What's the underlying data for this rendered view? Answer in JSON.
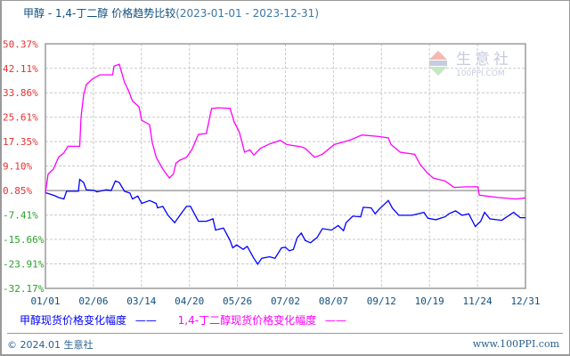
{
  "title": {
    "main": "甲醇 - 1,4-丁二醇 价格趋势比较",
    "range": "(2023-01-01 - 2023-12-31)"
  },
  "watermark": {
    "name": "生意社",
    "url": "100PPI.COM",
    "logo_text": "PPI"
  },
  "footer": {
    "copyright": "© 2024.01 生意社",
    "site": "www.100PPI.com"
  },
  "colors": {
    "methanol": "#0000ff",
    "butanediol": "#ff00ff",
    "positive_tick": "#e83030",
    "negative_tick": "#2aa02a",
    "text": "#0f4f7f",
    "grid": "#c8c8c8"
  },
  "chart_data": {
    "type": "line",
    "title": "甲醇 - 1,4-丁二醇 价格趋势比较(2023-01-01 - 2023-12-31)",
    "xlim": [
      "2023-01-01",
      "2023-12-31"
    ],
    "ylim": [
      -32.17,
      50.37
    ],
    "yticks": [
      "50.37%",
      "42.11%",
      "33.86%",
      "25.61%",
      "17.35%",
      "9.10%",
      "0.85%",
      "-7.41%",
      "-15.66%",
      "-23.91%",
      "-32.17%"
    ],
    "xticks": [
      "01/01",
      "02/06",
      "03/14",
      "04/20",
      "05/26",
      "07/02",
      "08/07",
      "09/12",
      "10/19",
      "11/24",
      "12/31"
    ],
    "grid": true,
    "legend_placement": "bottom",
    "series": [
      {
        "name": "甲醇现货价格变化幅度",
        "legend_line": "——",
        "color": "#0000ff",
        "points": [
          [
            "2023-01-01",
            0
          ],
          [
            "2023-01-02",
            0
          ],
          [
            "2023-01-08",
            -0.9
          ],
          [
            "2023-01-11",
            -1.5
          ],
          [
            "2023-01-15",
            -2.0
          ],
          [
            "2023-01-17",
            0.6
          ],
          [
            "2023-01-26",
            0.6
          ],
          [
            "2023-01-27",
            4.6
          ],
          [
            "2023-01-30",
            3.6
          ],
          [
            "2023-02-01",
            1.1
          ],
          [
            "2023-02-07",
            0.9
          ],
          [
            "2023-02-09",
            0.4
          ],
          [
            "2023-02-16",
            1.1
          ],
          [
            "2023-02-20",
            0.9
          ],
          [
            "2023-02-23",
            4.1
          ],
          [
            "2023-02-26",
            3.6
          ],
          [
            "2023-03-02",
            0.6
          ],
          [
            "2023-03-06",
            0.0
          ],
          [
            "2023-03-08",
            -2.0
          ],
          [
            "2023-03-12",
            -1.0
          ],
          [
            "2023-03-15",
            -3.5
          ],
          [
            "2023-03-21",
            -2.5
          ],
          [
            "2023-03-26",
            -3.5
          ],
          [
            "2023-03-27",
            -5.0
          ],
          [
            "2023-03-31",
            -4.5
          ],
          [
            "2023-04-04",
            -7.5
          ],
          [
            "2023-04-09",
            -10.0
          ],
          [
            "2023-04-13",
            -7.5
          ],
          [
            "2023-04-18",
            -4.5
          ],
          [
            "2023-04-21",
            -4.5
          ],
          [
            "2023-04-27",
            -9.5
          ],
          [
            "2023-05-03",
            -9.5
          ],
          [
            "2023-05-08",
            -8.7
          ],
          [
            "2023-05-10",
            -12.5
          ],
          [
            "2023-05-16",
            -11.8
          ],
          [
            "2023-05-21",
            -16.0
          ],
          [
            "2023-05-23",
            -18.5
          ],
          [
            "2023-05-26",
            -17.5
          ],
          [
            "2023-05-31",
            -19.0
          ],
          [
            "2023-06-03",
            -18.0
          ],
          [
            "2023-06-08",
            -22.0
          ],
          [
            "2023-06-11",
            -24.0
          ],
          [
            "2023-06-14",
            -22.0
          ],
          [
            "2023-06-20",
            -21.5
          ],
          [
            "2023-06-24",
            -22.0
          ],
          [
            "2023-06-29",
            -18.5
          ],
          [
            "2023-07-02",
            -18.3
          ],
          [
            "2023-07-05",
            -19.5
          ],
          [
            "2023-07-08",
            -19.0
          ],
          [
            "2023-07-11",
            -15.0
          ],
          [
            "2023-07-14",
            -13.5
          ],
          [
            "2023-07-17",
            -16.0
          ],
          [
            "2023-07-21",
            -16.8
          ],
          [
            "2023-07-26",
            -15.0
          ],
          [
            "2023-07-30",
            -12.0
          ],
          [
            "2023-08-06",
            -12.5
          ],
          [
            "2023-08-11",
            -11.0
          ],
          [
            "2023-08-15",
            -12.7
          ],
          [
            "2023-08-17",
            -10.0
          ],
          [
            "2023-08-22",
            -7.8
          ],
          [
            "2023-08-28",
            -8.0
          ],
          [
            "2023-08-30",
            -4.8
          ],
          [
            "2023-09-05",
            -5.0
          ],
          [
            "2023-09-08",
            -7.0
          ],
          [
            "2023-09-11",
            -5.5
          ],
          [
            "2023-09-18",
            -2.5
          ],
          [
            "2023-09-21",
            -5.0
          ],
          [
            "2023-09-26",
            -7.5
          ],
          [
            "2023-10-06",
            -7.5
          ],
          [
            "2023-10-15",
            -6.5
          ],
          [
            "2023-10-18",
            -8.5
          ],
          [
            "2023-10-24",
            -9.0
          ],
          [
            "2023-10-31",
            -8.0
          ],
          [
            "2023-11-03",
            -7.0
          ],
          [
            "2023-11-08",
            -6.0
          ],
          [
            "2023-11-13",
            -7.5
          ],
          [
            "2023-11-18",
            -7.0
          ],
          [
            "2023-11-23",
            -11.3
          ],
          [
            "2023-11-27",
            -9.5
          ],
          [
            "2023-11-30",
            -6.5
          ],
          [
            "2023-12-04",
            -8.7
          ],
          [
            "2023-12-13",
            -9.2
          ],
          [
            "2023-12-22",
            -6.5
          ],
          [
            "2023-12-27",
            -8.3
          ],
          [
            "2023-12-31",
            -8.3
          ]
        ]
      },
      {
        "name": "1,4-丁二醇现货价格变化幅度",
        "legend_line": "——",
        "color": "#ff00ff",
        "points": [
          [
            "2023-01-01",
            0
          ],
          [
            "2023-01-03",
            6.4
          ],
          [
            "2023-01-07",
            8.1
          ],
          [
            "2023-01-11",
            12.1
          ],
          [
            "2023-01-15",
            13.6
          ],
          [
            "2023-01-18",
            15.8
          ],
          [
            "2023-01-27",
            15.8
          ],
          [
            "2023-01-28",
            25.6
          ],
          [
            "2023-01-30",
            33.1
          ],
          [
            "2023-02-01",
            36.6
          ],
          [
            "2023-02-05",
            38.3
          ],
          [
            "2023-02-11",
            39.9
          ],
          [
            "2023-02-21",
            39.9
          ],
          [
            "2023-02-22",
            42.9
          ],
          [
            "2023-02-26",
            43.5
          ],
          [
            "2023-03-02",
            37.4
          ],
          [
            "2023-03-05",
            34.6
          ],
          [
            "2023-03-08",
            31.1
          ],
          [
            "2023-03-13",
            29.1
          ],
          [
            "2023-03-15",
            24.6
          ],
          [
            "2023-03-21",
            23.1
          ],
          [
            "2023-03-23",
            17.1
          ],
          [
            "2023-03-26",
            12.1
          ],
          [
            "2023-03-31",
            8.1
          ],
          [
            "2023-04-05",
            5.1
          ],
          [
            "2023-04-08",
            6.4
          ],
          [
            "2023-04-10",
            10.1
          ],
          [
            "2023-04-13",
            11.1
          ],
          [
            "2023-04-18",
            12.1
          ],
          [
            "2023-04-22",
            14.6
          ],
          [
            "2023-04-27",
            19.8
          ],
          [
            "2023-05-03",
            20.1
          ],
          [
            "2023-05-07",
            28.6
          ],
          [
            "2023-05-12",
            28.8
          ],
          [
            "2023-05-21",
            28.6
          ],
          [
            "2023-05-24",
            24.1
          ],
          [
            "2023-05-28",
            20.6
          ],
          [
            "2023-06-01",
            13.8
          ],
          [
            "2023-06-05",
            14.6
          ],
          [
            "2023-06-08",
            12.8
          ],
          [
            "2023-06-13",
            15.1
          ],
          [
            "2023-06-20",
            16.6
          ],
          [
            "2023-06-28",
            17.8
          ],
          [
            "2023-07-03",
            16.4
          ],
          [
            "2023-07-14",
            15.6
          ],
          [
            "2023-07-17",
            15.1
          ],
          [
            "2023-07-24",
            12.1
          ],
          [
            "2023-07-30",
            13.1
          ],
          [
            "2023-08-08",
            16.4
          ],
          [
            "2023-08-20",
            17.9
          ],
          [
            "2023-08-29",
            19.6
          ],
          [
            "2023-09-11",
            19.1
          ],
          [
            "2023-09-18",
            18.6
          ],
          [
            "2023-09-20",
            16.4
          ],
          [
            "2023-09-27",
            13.8
          ],
          [
            "2023-10-08",
            13.1
          ],
          [
            "2023-10-12",
            9.8
          ],
          [
            "2023-10-17",
            7.1
          ],
          [
            "2023-10-22",
            5.1
          ],
          [
            "2023-10-31",
            4.1
          ],
          [
            "2023-11-07",
            1.9
          ],
          [
            "2023-11-16",
            2.1
          ],
          [
            "2023-11-25",
            2.1
          ],
          [
            "2023-11-26",
            -0.7
          ],
          [
            "2023-12-10",
            -1.5
          ],
          [
            "2023-12-24",
            -2.0
          ],
          [
            "2023-12-31",
            -1.6
          ]
        ]
      }
    ]
  }
}
